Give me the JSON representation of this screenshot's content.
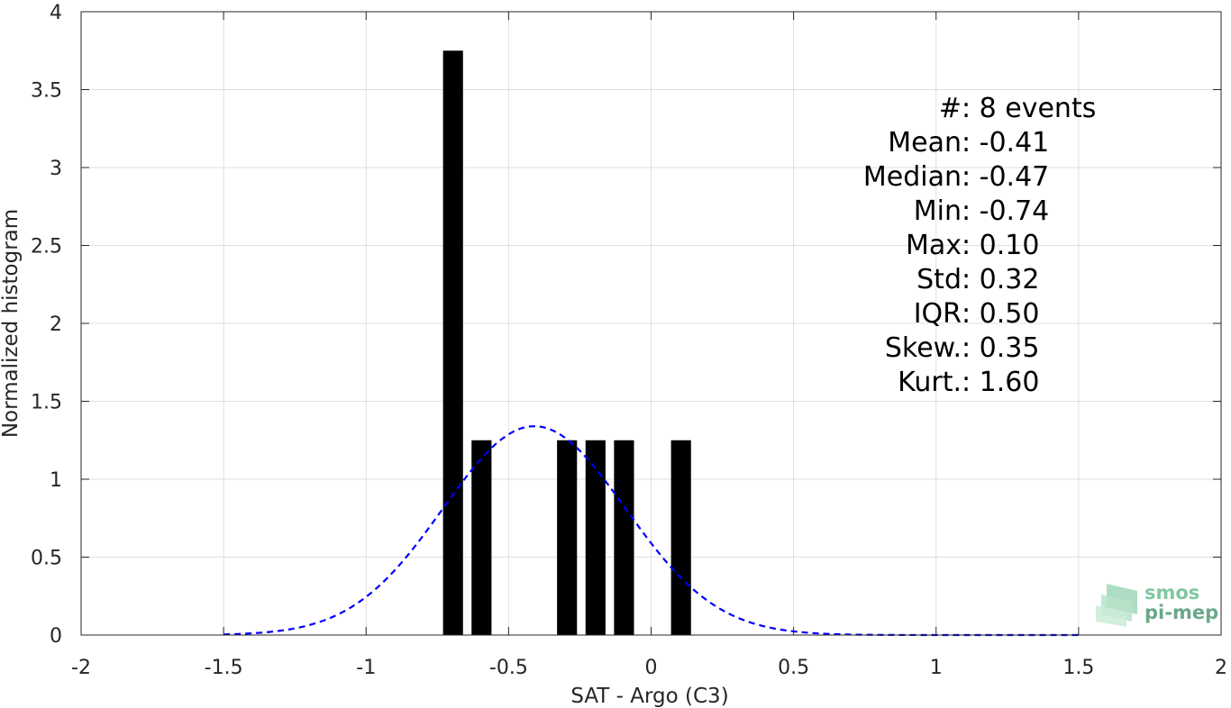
{
  "chart_data": {
    "type": "bar",
    "xlabel": "SAT - Argo (C3)",
    "ylabel": "Normalized histogram",
    "xlim": [
      -2,
      2
    ],
    "ylim": [
      0,
      4
    ],
    "xticks": [
      -2,
      -1.5,
      -1,
      -0.5,
      0,
      0.5,
      1,
      1.5,
      2
    ],
    "xtick_labels": [
      "-2",
      "-1.5",
      "-1",
      "-0.5",
      "0",
      "0.5",
      "1",
      "1.5",
      "2"
    ],
    "yticks": [
      0,
      0.5,
      1,
      1.5,
      2,
      2.5,
      3,
      3.5,
      4
    ],
    "ytick_labels": [
      "0",
      "0.5",
      "1",
      "1.5",
      "2",
      "2.5",
      "3",
      "3.5",
      "4"
    ],
    "grid": true,
    "bar_width": 0.07,
    "bars": [
      {
        "x": -0.695,
        "value": 3.75
      },
      {
        "x": -0.595,
        "value": 1.25
      },
      {
        "x": -0.295,
        "value": 1.25
      },
      {
        "x": -0.195,
        "value": 1.25
      },
      {
        "x": -0.095,
        "value": 1.25
      },
      {
        "x": 0.105,
        "value": 1.25
      }
    ],
    "fit_curve": {
      "style": "dashed",
      "color": "#0000ff",
      "mean": -0.41,
      "std": 0.32,
      "peak": 1.34,
      "x_range": [
        -1.5,
        1.5
      ]
    },
    "stats": [
      {
        "key": "#",
        "sep": ": ",
        "value": "8 events"
      },
      {
        "key": "Mean",
        "sep": " : ",
        "value": "-0.41"
      },
      {
        "key": "Median",
        "sep": " : ",
        "value": "-0.47"
      },
      {
        "key": "Min",
        "sep": " : ",
        "value": "-0.74"
      },
      {
        "key": "Max",
        "sep": " : ",
        "value": "0.10"
      },
      {
        "key": "Std",
        "sep": " : ",
        "value": "0.32"
      },
      {
        "key": "IQR",
        "sep": " : ",
        "value": "0.50"
      },
      {
        "key": "Skew.",
        "sep": " : ",
        "value": "0.35"
      },
      {
        "key": "Kurt.",
        "sep": " : ",
        "value": "1.60"
      }
    ]
  },
  "logo": {
    "line1": "smos",
    "line2": "pi-mep",
    "color1": "#7fc9a0",
    "color2": "#6aa889"
  },
  "colors": {
    "bar": "#000000",
    "grid": "#dfdfdf",
    "axis": "#262626"
  }
}
